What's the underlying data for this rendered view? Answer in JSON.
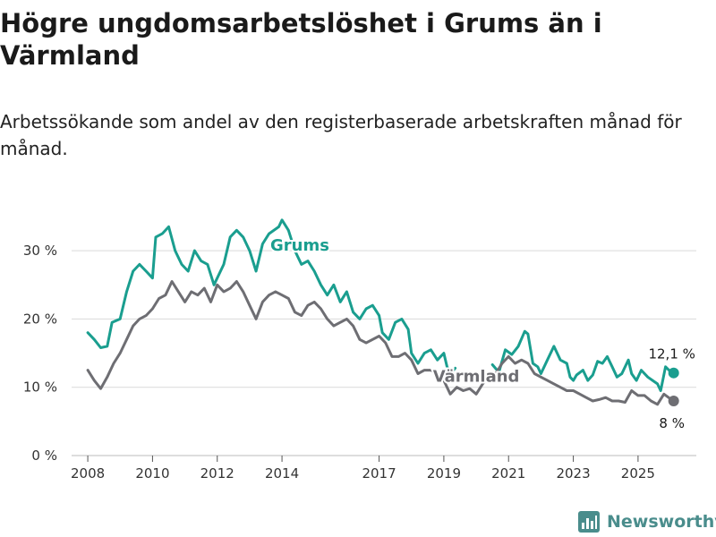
{
  "title": "Högre ungdomsarbetslöshet i Grums än i Värmland",
  "subtitle": "Arbetssökande som andel av den registerbaserade arbetskraften månad för månad.",
  "brand": "Newsworthy",
  "colors": {
    "grums": "#1a9e8f",
    "varmland": "#6e6e73",
    "grid": "#d9d9d9",
    "axis": "#555555",
    "brand": "#4a8d8c"
  },
  "chart_data": {
    "type": "line",
    "title": "Högre ungdomsarbetslöshet i Grums än i Värmland",
    "xlabel": "",
    "ylabel": "",
    "x_unit": "year (decimal, monthly)",
    "xlim": [
      2007.5,
      2026.8
    ],
    "ylim": [
      0,
      35
    ],
    "y_ticks": [
      {
        "value": 0,
        "label": "0 %"
      },
      {
        "value": 10,
        "label": "10 %"
      },
      {
        "value": 20,
        "label": "20 %"
      },
      {
        "value": 30,
        "label": "30 %"
      }
    ],
    "x_ticks": [
      {
        "value": 2008,
        "label": "2008"
      },
      {
        "value": 2010,
        "label": "2010"
      },
      {
        "value": 2012,
        "label": "2012"
      },
      {
        "value": 2014,
        "label": "2014"
      },
      {
        "value": 2017,
        "label": "2017"
      },
      {
        "value": 2019,
        "label": "2019"
      },
      {
        "value": 2021,
        "label": "2021"
      },
      {
        "value": 2023,
        "label": "2023"
      },
      {
        "value": 2025,
        "label": "2025"
      }
    ],
    "grid": true,
    "series": [
      {
        "name": "Grums",
        "label": "Grums",
        "end_label": "12,1 %",
        "points": [
          [
            2008.0,
            18.0
          ],
          [
            2008.2,
            17.0
          ],
          [
            2008.4,
            15.8
          ],
          [
            2008.6,
            16.0
          ],
          [
            2008.75,
            19.5
          ],
          [
            2009.0,
            20.0
          ],
          [
            2009.2,
            24.0
          ],
          [
            2009.4,
            27.0
          ],
          [
            2009.6,
            28.0
          ],
          [
            2009.8,
            27.0
          ],
          [
            2010.0,
            26.0
          ],
          [
            2010.1,
            32.0
          ],
          [
            2010.3,
            32.5
          ],
          [
            2010.5,
            33.5
          ],
          [
            2010.7,
            30.0
          ],
          [
            2010.9,
            28.0
          ],
          [
            2011.1,
            27.0
          ],
          [
            2011.3,
            30.0
          ],
          [
            2011.5,
            28.5
          ],
          [
            2011.7,
            28.0
          ],
          [
            2011.9,
            25.0
          ],
          [
            2012.2,
            28.0
          ],
          [
            2012.4,
            32.0
          ],
          [
            2012.6,
            33.0
          ],
          [
            2012.8,
            32.0
          ],
          [
            2013.0,
            30.0
          ],
          [
            2013.2,
            27.0
          ],
          [
            2013.4,
            31.0
          ],
          [
            2013.6,
            32.5
          ],
          [
            2013.9,
            33.5
          ],
          [
            2014.0,
            34.5
          ],
          [
            2014.2,
            33.0
          ],
          [
            2014.4,
            30.0
          ],
          [
            2014.6,
            28.0
          ],
          [
            2014.8,
            28.5
          ],
          [
            2015.0,
            27.0
          ],
          [
            2015.2,
            25.0
          ],
          [
            2015.4,
            23.5
          ],
          [
            2015.6,
            25.0
          ],
          [
            2015.8,
            22.5
          ],
          [
            2016.0,
            24.0
          ],
          [
            2016.2,
            21.0
          ],
          [
            2016.4,
            20.0
          ],
          [
            2016.6,
            21.5
          ],
          [
            2016.8,
            22.0
          ],
          [
            2017.0,
            20.5
          ],
          [
            2017.1,
            18.0
          ],
          [
            2017.3,
            17.0
          ],
          [
            2017.5,
            19.5
          ],
          [
            2017.7,
            20.0
          ],
          [
            2017.9,
            18.5
          ],
          [
            2018.0,
            15.0
          ],
          [
            2018.2,
            13.5
          ],
          [
            2018.4,
            15.0
          ],
          [
            2018.6,
            15.5
          ],
          [
            2018.8,
            14.0
          ],
          [
            2019.0,
            15.0
          ],
          [
            2019.1,
            13.0
          ],
          [
            2019.2,
            12.0
          ],
          [
            2019.35,
            12.8
          ],
          [
            2020.5,
            13.3
          ],
          [
            2020.7,
            12.2
          ],
          [
            2020.9,
            15.5
          ],
          [
            2021.1,
            14.8
          ],
          [
            2021.3,
            16.0
          ],
          [
            2021.5,
            18.2
          ],
          [
            2021.6,
            17.8
          ],
          [
            2021.75,
            13.5
          ],
          [
            2021.9,
            13.0
          ],
          [
            2022.0,
            12.0
          ],
          [
            2022.2,
            14.0
          ],
          [
            2022.4,
            16.0
          ],
          [
            2022.6,
            14.0
          ],
          [
            2022.8,
            13.5
          ],
          [
            2022.9,
            11.5
          ],
          [
            2023.0,
            11.0
          ],
          [
            2023.1,
            11.8
          ],
          [
            2023.3,
            12.5
          ],
          [
            2023.45,
            11.0
          ],
          [
            2023.6,
            11.8
          ],
          [
            2023.75,
            13.8
          ],
          [
            2023.9,
            13.5
          ],
          [
            2024.05,
            14.5
          ],
          [
            2024.2,
            13.0
          ],
          [
            2024.35,
            11.5
          ],
          [
            2024.5,
            12.0
          ],
          [
            2024.7,
            14.0
          ],
          [
            2024.8,
            12.0
          ],
          [
            2024.95,
            11.0
          ],
          [
            2025.1,
            12.5
          ],
          [
            2025.3,
            11.5
          ],
          [
            2025.45,
            11.0
          ],
          [
            2025.6,
            10.5
          ],
          [
            2025.7,
            9.5
          ],
          [
            2025.85,
            13.0
          ],
          [
            2026.0,
            12.3
          ],
          [
            2026.1,
            12.1
          ]
        ]
      },
      {
        "name": "Värmland",
        "label": "Värmland",
        "end_label": "8 %",
        "points": [
          [
            2008.0,
            12.5
          ],
          [
            2008.2,
            11.0
          ],
          [
            2008.4,
            9.8
          ],
          [
            2008.6,
            11.5
          ],
          [
            2008.8,
            13.5
          ],
          [
            2009.0,
            15.0
          ],
          [
            2009.2,
            17.0
          ],
          [
            2009.4,
            19.0
          ],
          [
            2009.6,
            20.0
          ],
          [
            2009.8,
            20.5
          ],
          [
            2010.0,
            21.5
          ],
          [
            2010.2,
            23.0
          ],
          [
            2010.4,
            23.5
          ],
          [
            2010.6,
            25.5
          ],
          [
            2010.8,
            24.0
          ],
          [
            2011.0,
            22.5
          ],
          [
            2011.2,
            24.0
          ],
          [
            2011.4,
            23.5
          ],
          [
            2011.6,
            24.5
          ],
          [
            2011.8,
            22.5
          ],
          [
            2012.0,
            25.0
          ],
          [
            2012.2,
            24.0
          ],
          [
            2012.4,
            24.5
          ],
          [
            2012.6,
            25.5
          ],
          [
            2012.8,
            24.0
          ],
          [
            2013.0,
            22.0
          ],
          [
            2013.2,
            20.0
          ],
          [
            2013.4,
            22.5
          ],
          [
            2013.6,
            23.5
          ],
          [
            2013.8,
            24.0
          ],
          [
            2014.0,
            23.5
          ],
          [
            2014.2,
            23.0
          ],
          [
            2014.4,
            21.0
          ],
          [
            2014.6,
            20.5
          ],
          [
            2014.8,
            22.0
          ],
          [
            2015.0,
            22.5
          ],
          [
            2015.2,
            21.5
          ],
          [
            2015.4,
            20.0
          ],
          [
            2015.6,
            19.0
          ],
          [
            2015.8,
            19.5
          ],
          [
            2016.0,
            20.0
          ],
          [
            2016.2,
            19.0
          ],
          [
            2016.4,
            17.0
          ],
          [
            2016.6,
            16.5
          ],
          [
            2016.8,
            17.0
          ],
          [
            2017.0,
            17.5
          ],
          [
            2017.2,
            16.5
          ],
          [
            2017.4,
            14.5
          ],
          [
            2017.6,
            14.5
          ],
          [
            2017.8,
            15.0
          ],
          [
            2018.0,
            14.0
          ],
          [
            2018.2,
            12.0
          ],
          [
            2018.4,
            12.5
          ],
          [
            2018.6,
            12.5
          ],
          [
            2018.8,
            12.0
          ],
          [
            2019.0,
            11.0
          ],
          [
            2019.2,
            9.0
          ],
          [
            2019.4,
            10.0
          ],
          [
            2019.6,
            9.5
          ],
          [
            2019.8,
            9.8
          ],
          [
            2020.0,
            9.0
          ],
          [
            2020.2,
            10.5
          ],
          [
            2020.4,
            11.5
          ],
          [
            2020.6,
            12.0
          ],
          [
            2020.8,
            13.5
          ],
          [
            2021.0,
            14.5
          ],
          [
            2021.2,
            13.5
          ],
          [
            2021.4,
            14.0
          ],
          [
            2021.6,
            13.5
          ],
          [
            2021.8,
            12.0
          ],
          [
            2022.0,
            11.5
          ],
          [
            2022.2,
            11.0
          ],
          [
            2022.4,
            10.5
          ],
          [
            2022.6,
            10.0
          ],
          [
            2022.8,
            9.5
          ],
          [
            2023.0,
            9.5
          ],
          [
            2023.2,
            9.0
          ],
          [
            2023.4,
            8.5
          ],
          [
            2023.6,
            8.0
          ],
          [
            2023.8,
            8.2
          ],
          [
            2024.0,
            8.5
          ],
          [
            2024.2,
            8.0
          ],
          [
            2024.4,
            8.0
          ],
          [
            2024.6,
            7.8
          ],
          [
            2024.8,
            9.5
          ],
          [
            2025.0,
            8.8
          ],
          [
            2025.2,
            8.8
          ],
          [
            2025.4,
            8.0
          ],
          [
            2025.6,
            7.5
          ],
          [
            2025.8,
            9.0
          ],
          [
            2026.0,
            8.3
          ],
          [
            2026.1,
            8.0
          ]
        ]
      }
    ]
  }
}
